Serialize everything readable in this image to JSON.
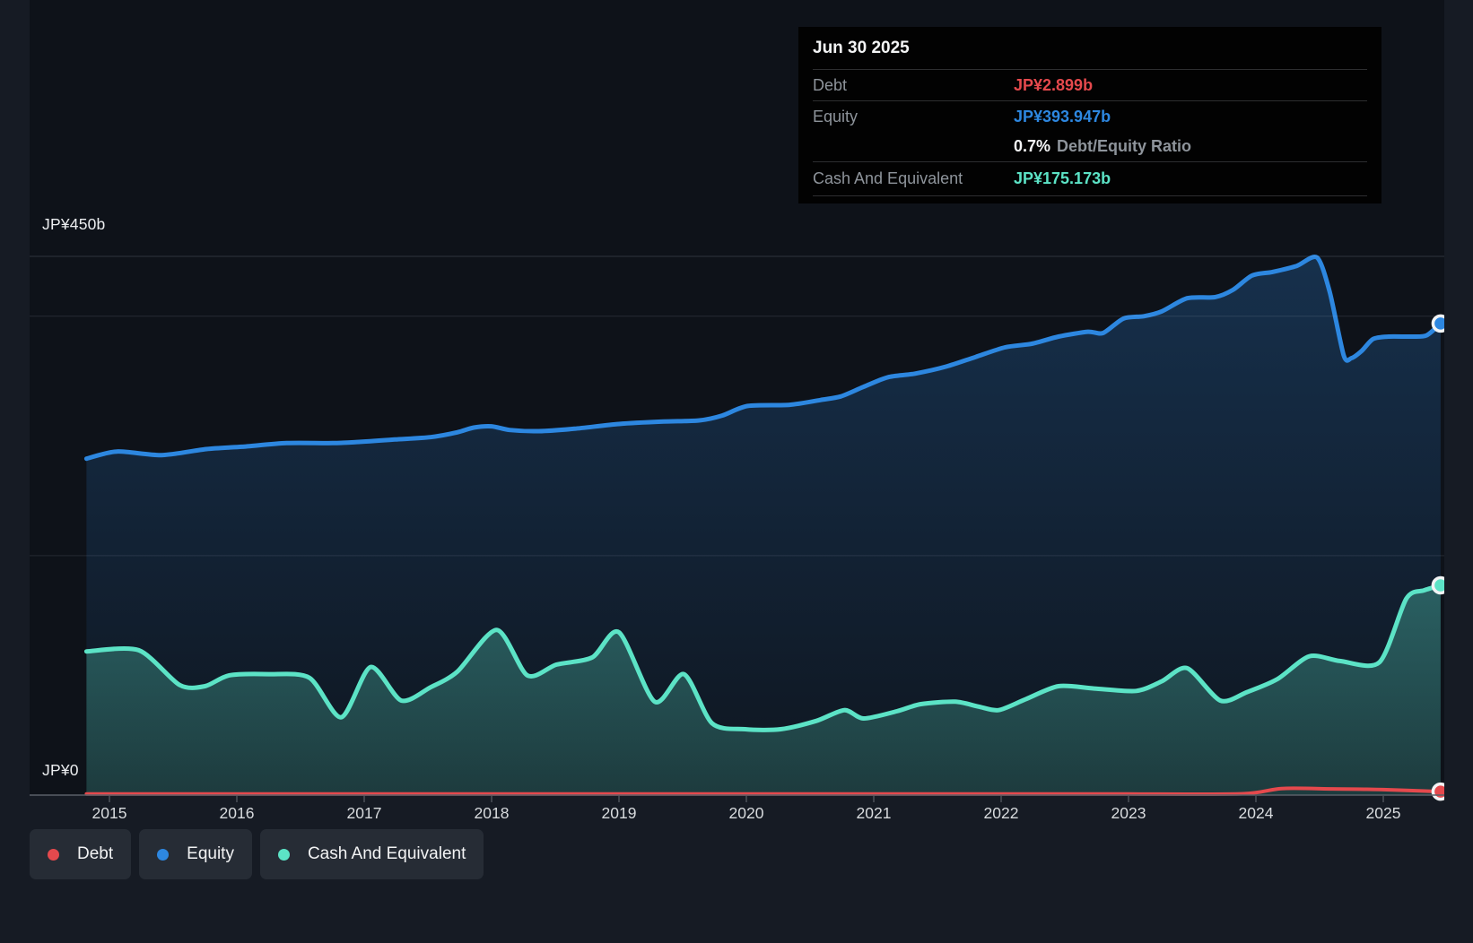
{
  "colors": {
    "debt": "#e5494d",
    "equity": "#2d87e0",
    "cash": "#5ce3c6",
    "background": "#161b24",
    "plot_background": "#0e1219",
    "tooltip_background": "#020202",
    "axis_line": "#5a6068",
    "grid_line": "rgba(200,212,225,0.13)",
    "text_muted": "#8e949b",
    "text_bright": "#f4f5f6"
  },
  "tooltip": {
    "date": "Jun 30 2025",
    "debt_label": "Debt",
    "debt_value": "JP¥2.899b",
    "equity_label": "Equity",
    "equity_value": "JP¥393.947b",
    "ratio_value": "0.7%",
    "ratio_label": "Debt/Equity Ratio",
    "cash_label": "Cash And Equivalent",
    "cash_value": "JP¥175.173b"
  },
  "y_axis": {
    "top_label": "JP¥450b",
    "zero_label": "JP¥0"
  },
  "x_axis": {
    "years": [
      "2015",
      "2016",
      "2017",
      "2018",
      "2019",
      "2020",
      "2021",
      "2022",
      "2023",
      "2024",
      "2025"
    ]
  },
  "legend": {
    "items": [
      {
        "label": "Debt",
        "color": "#e5494d"
      },
      {
        "label": "Equity",
        "color": "#2d87e0"
      },
      {
        "label": "Cash And Equivalent",
        "color": "#5ce3c6"
      }
    ]
  },
  "chart_data": {
    "type": "area",
    "title": "Debt to Equity History",
    "unit": "JP¥ billions",
    "ylim": [
      0,
      450
    ],
    "y_gridline_values": [
      450,
      400,
      200,
      0
    ],
    "x_range_years": [
      2014.82,
      2025.47
    ],
    "x_tick_years": [
      2015,
      2016,
      2017,
      2018,
      2019,
      2020,
      2021,
      2022,
      2023,
      2024,
      2025
    ],
    "legend_position": "bottom-left",
    "series": [
      {
        "name": "Debt",
        "color": "#e5494d",
        "last_point_label": "JP¥2.899b",
        "points": [
          [
            2014.82,
            0.9
          ],
          [
            2016.0,
            0.9
          ],
          [
            2017.0,
            0.9
          ],
          [
            2018.0,
            0.9
          ],
          [
            2019.0,
            0.9
          ],
          [
            2020.0,
            0.9
          ],
          [
            2021.0,
            0.9
          ],
          [
            2022.0,
            0.9
          ],
          [
            2023.0,
            0.9
          ],
          [
            2023.9,
            1.1
          ],
          [
            2024.2,
            5.5
          ],
          [
            2024.6,
            5.2
          ],
          [
            2025.0,
            4.6
          ],
          [
            2025.45,
            2.899
          ]
        ]
      },
      {
        "name": "Equity",
        "color": "#2d87e0",
        "last_point_label": "JP¥393.947b",
        "points": [
          [
            2014.82,
            281
          ],
          [
            2015.06,
            287
          ],
          [
            2015.41,
            284
          ],
          [
            2015.76,
            289
          ],
          [
            2016.04,
            291
          ],
          [
            2016.39,
            294
          ],
          [
            2016.75,
            294
          ],
          [
            2016.96,
            295
          ],
          [
            2017.24,
            297
          ],
          [
            2017.52,
            299
          ],
          [
            2017.73,
            303
          ],
          [
            2017.86,
            307
          ],
          [
            2018.0,
            308
          ],
          [
            2018.14,
            305
          ],
          [
            2018.37,
            304
          ],
          [
            2018.65,
            306
          ],
          [
            2019.0,
            310
          ],
          [
            2019.35,
            312
          ],
          [
            2019.63,
            313
          ],
          [
            2019.81,
            317
          ],
          [
            2020.01,
            325
          ],
          [
            2020.34,
            326
          ],
          [
            2020.58,
            330
          ],
          [
            2020.74,
            333
          ],
          [
            2020.92,
            341
          ],
          [
            2021.11,
            349
          ],
          [
            2021.32,
            352
          ],
          [
            2021.57,
            358
          ],
          [
            2021.8,
            366
          ],
          [
            2022.03,
            374
          ],
          [
            2022.24,
            377
          ],
          [
            2022.45,
            383
          ],
          [
            2022.68,
            387
          ],
          [
            2022.8,
            386
          ],
          [
            2022.96,
            398
          ],
          [
            2023.12,
            400
          ],
          [
            2023.26,
            404
          ],
          [
            2023.46,
            415
          ],
          [
            2023.68,
            416
          ],
          [
            2023.82,
            422
          ],
          [
            2023.97,
            434
          ],
          [
            2024.13,
            437
          ],
          [
            2024.32,
            442
          ],
          [
            2024.48,
            449
          ],
          [
            2024.58,
            420
          ],
          [
            2024.69,
            367
          ],
          [
            2024.75,
            365
          ],
          [
            2024.83,
            371
          ],
          [
            2024.92,
            381
          ],
          [
            2025.04,
            383
          ],
          [
            2025.22,
            383
          ],
          [
            2025.34,
            384
          ],
          [
            2025.45,
            393.947
          ]
        ]
      },
      {
        "name": "Cash And Equivalent",
        "color": "#5ce3c6",
        "last_point_label": "JP¥175.173b",
        "points": [
          [
            2014.82,
            120
          ],
          [
            2015.23,
            121
          ],
          [
            2015.55,
            92
          ],
          [
            2015.75,
            91
          ],
          [
            2015.94,
            100
          ],
          [
            2016.25,
            101
          ],
          [
            2016.57,
            98
          ],
          [
            2016.82,
            65
          ],
          [
            2017.05,
            107
          ],
          [
            2017.29,
            79
          ],
          [
            2017.52,
            90
          ],
          [
            2017.73,
            103
          ],
          [
            2018.04,
            138
          ],
          [
            2018.28,
            100
          ],
          [
            2018.51,
            109
          ],
          [
            2018.79,
            115
          ],
          [
            2019.0,
            136
          ],
          [
            2019.28,
            78
          ],
          [
            2019.51,
            101
          ],
          [
            2019.73,
            60
          ],
          [
            2019.99,
            55
          ],
          [
            2020.27,
            55
          ],
          [
            2020.55,
            62
          ],
          [
            2020.77,
            71
          ],
          [
            2020.92,
            64
          ],
          [
            2021.18,
            70
          ],
          [
            2021.37,
            76
          ],
          [
            2021.64,
            78
          ],
          [
            2021.82,
            74
          ],
          [
            2021.98,
            71
          ],
          [
            2022.19,
            80
          ],
          [
            2022.45,
            91
          ],
          [
            2022.73,
            89
          ],
          [
            2023.06,
            87
          ],
          [
            2023.26,
            95
          ],
          [
            2023.46,
            106
          ],
          [
            2023.72,
            79
          ],
          [
            2023.93,
            86
          ],
          [
            2024.17,
            97
          ],
          [
            2024.42,
            116
          ],
          [
            2024.66,
            112
          ],
          [
            2024.97,
            111
          ],
          [
            2025.18,
            164
          ],
          [
            2025.32,
            171
          ],
          [
            2025.45,
            175.173
          ]
        ]
      }
    ]
  }
}
